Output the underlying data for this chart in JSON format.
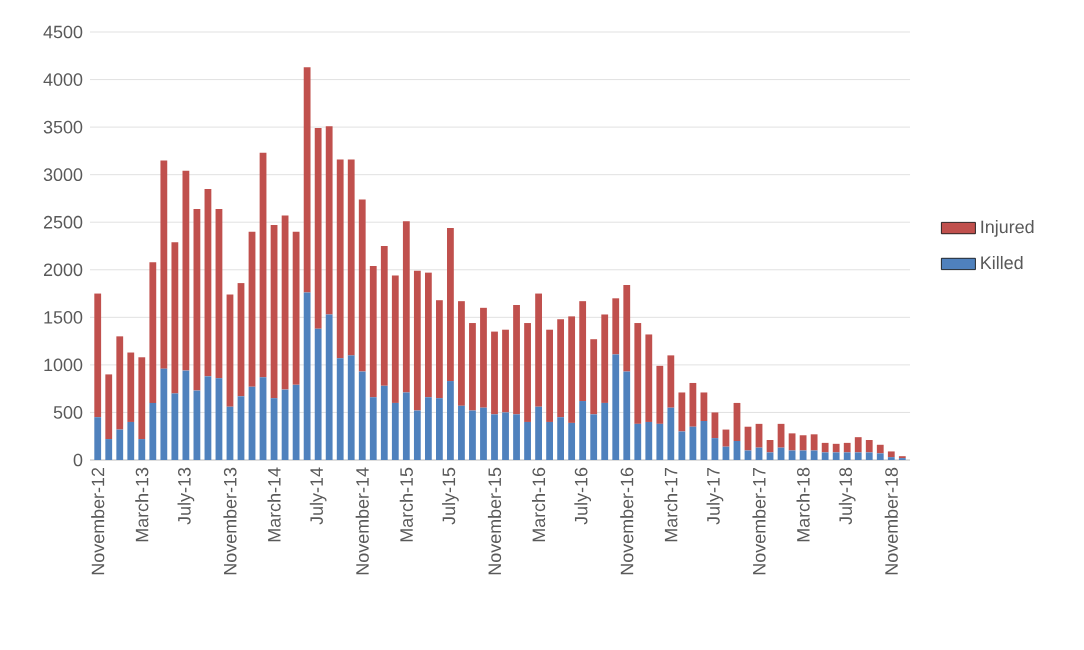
{
  "chart_data": {
    "type": "bar",
    "stacked": true,
    "grid": "y",
    "legend": "right",
    "categories": [
      "November-12",
      null,
      null,
      null,
      "March-13",
      null,
      null,
      null,
      "July-13",
      null,
      null,
      null,
      "November-13",
      null,
      null,
      null,
      "March-14",
      null,
      null,
      null,
      "July-14",
      null,
      null,
      null,
      "November-14",
      null,
      null,
      null,
      "March-15",
      null,
      null,
      null,
      "July-15",
      null,
      null,
      null,
      "November-15",
      null,
      null,
      null,
      "March-16",
      null,
      null,
      null,
      "July-16",
      null,
      null,
      null,
      "November-16",
      null,
      null,
      null,
      "March-17",
      null,
      null,
      null,
      "July-17",
      null,
      null,
      null,
      "November-17",
      null,
      null,
      null,
      "March-18",
      null,
      null,
      null,
      "July-18",
      null,
      null,
      null,
      "November-18",
      null
    ],
    "ylim": [
      0,
      4500
    ],
    "yticks": [
      0,
      500,
      1000,
      1500,
      2000,
      2500,
      3000,
      3500,
      4000,
      4500
    ],
    "series": [
      {
        "name": "Killed",
        "color": "#4f81bd",
        "values": [
          450,
          220,
          320,
          400,
          220,
          600,
          960,
          700,
          940,
          730,
          880,
          860,
          560,
          670,
          770,
          870,
          650,
          740,
          790,
          1760,
          1380,
          1530,
          1070,
          1100,
          930,
          660,
          780,
          600,
          710,
          520,
          660,
          650,
          830,
          570,
          520,
          550,
          480,
          500,
          480,
          400,
          560,
          400,
          450,
          390,
          620,
          480,
          600,
          1110,
          930,
          380,
          400,
          380,
          550,
          300,
          350,
          410,
          230,
          140,
          200,
          100,
          130,
          80,
          130,
          100,
          100,
          100,
          80,
          80,
          80,
          80,
          80,
          70,
          30,
          20
        ]
      },
      {
        "name": "Injured",
        "color": "#c0504d",
        "values": [
          1300,
          680,
          980,
          730,
          860,
          1480,
          2190,
          1590,
          2100,
          1910,
          1970,
          1780,
          1180,
          1190,
          1630,
          2360,
          1820,
          1830,
          1610,
          2370,
          2110,
          1980,
          2090,
          2060,
          1810,
          1380,
          1470,
          1340,
          1800,
          1470,
          1310,
          1030,
          1610,
          1100,
          920,
          1050,
          870,
          870,
          1150,
          1040,
          1190,
          970,
          1030,
          1120,
          1050,
          790,
          930,
          590,
          910,
          1060,
          920,
          610,
          550,
          410,
          460,
          300,
          270,
          180,
          400,
          250,
          250,
          130,
          250,
          180,
          160,
          170,
          100,
          90,
          100,
          160,
          130,
          90,
          60,
          20
        ]
      }
    ]
  }
}
